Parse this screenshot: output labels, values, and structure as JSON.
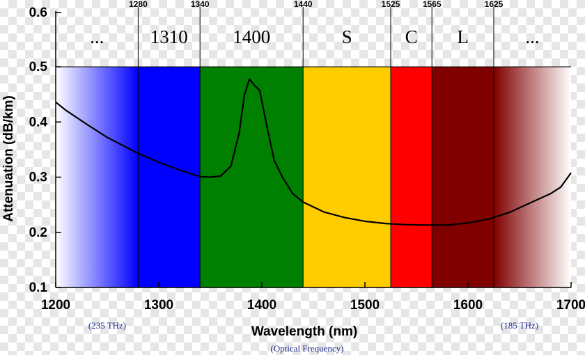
{
  "chart_data": {
    "type": "line",
    "xlabel": "Wavelength (nm)",
    "ylabel": "Attenuation (dB/km)",
    "xlim": [
      1200,
      1700
    ],
    "ylim": [
      0.1,
      0.5
    ],
    "y_top_label": 0.6,
    "x_ticks": [
      1200,
      1300,
      1400,
      1500,
      1600,
      1700
    ],
    "y_ticks": [
      0.1,
      0.2,
      0.3,
      0.4,
      0.5
    ],
    "grid": false,
    "band_boundaries": [
      1280,
      1340,
      1440,
      1525,
      1565,
      1625
    ],
    "bands": [
      {
        "label": "...",
        "from": 1200,
        "to": 1280,
        "color": "#0000ff",
        "fill": "fade-in"
      },
      {
        "label": "1310",
        "from": 1280,
        "to": 1340,
        "color": "#0000ff"
      },
      {
        "label": "1400",
        "from": 1340,
        "to": 1440,
        "color": "#008000"
      },
      {
        "label": "S",
        "from": 1440,
        "to": 1525,
        "color": "#ffcc00"
      },
      {
        "label": "C",
        "from": 1525,
        "to": 1565,
        "color": "#ff0000"
      },
      {
        "label": "L",
        "from": 1565,
        "to": 1625,
        "color": "#800000"
      },
      {
        "label": "...",
        "from": 1625,
        "to": 1700,
        "color": "#800000",
        "fill": "fade-out"
      }
    ],
    "series": [
      {
        "color": "#000000",
        "x": [
          1200,
          1210,
          1230,
          1250,
          1280,
          1300,
          1320,
          1340,
          1350,
          1360,
          1370,
          1378,
          1383,
          1388,
          1392,
          1398,
          1404,
          1412,
          1420,
          1430,
          1440,
          1460,
          1480,
          1500,
          1520,
          1540,
          1560,
          1580,
          1600,
          1620,
          1640,
          1660,
          1680,
          1690,
          1700
        ],
        "y": [
          0.436,
          0.421,
          0.396,
          0.372,
          0.343,
          0.327,
          0.313,
          0.301,
          0.3,
          0.302,
          0.32,
          0.38,
          0.448,
          0.478,
          0.468,
          0.457,
          0.4,
          0.33,
          0.3,
          0.27,
          0.255,
          0.237,
          0.227,
          0.22,
          0.216,
          0.214,
          0.213,
          0.213,
          0.217,
          0.224,
          0.236,
          0.253,
          0.27,
          0.282,
          0.308
        ]
      }
    ],
    "frequency_labels": [
      {
        "x": 1250,
        "text": "(235 THz)"
      },
      {
        "x": 1650,
        "text": "(185 THz)"
      }
    ],
    "xlabel_note": "(Optical Frequency)"
  }
}
